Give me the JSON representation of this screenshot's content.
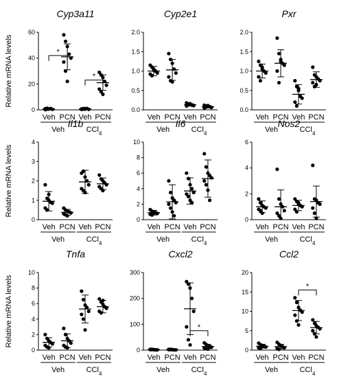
{
  "y_axis_label": "Relative mRNA levels",
  "chart_data": [
    {
      "type": "scatter",
      "title": "Cyp3a11",
      "categories": [
        "Veh",
        "PCN",
        "Veh",
        "PCN"
      ],
      "groups": [
        {
          "label": "Veh",
          "sub": ""
        },
        {
          "label": "CCl",
          "sub": "4"
        }
      ],
      "ylim": [
        0,
        60
      ],
      "yticks": [
        0,
        20,
        40,
        60
      ],
      "series": [
        {
          "name": "Veh",
          "mean": 0.7,
          "sd": 0.6,
          "points": [
            0.2,
            0.5,
            0.8,
            1.0,
            0.4,
            0.9,
            1.2,
            0.6
          ]
        },
        {
          "name": "PCN",
          "mean": 41,
          "sd": 10,
          "points": [
            58,
            53,
            49,
            43,
            40,
            37,
            30,
            22
          ]
        },
        {
          "name": "Veh",
          "mean": 0.7,
          "sd": 0.6,
          "points": [
            0.3,
            0.6,
            0.9,
            1.1,
            0.4,
            0.7,
            1.0,
            0.5
          ]
        },
        {
          "name": "PCN",
          "mean": 21,
          "sd": 6,
          "points": [
            29,
            27,
            25,
            22,
            19,
            16,
            14,
            12
          ]
        }
      ],
      "annotations": [
        {
          "text": "*",
          "from": 0,
          "to": 1,
          "y": 42
        },
        {
          "text": "*",
          "from": 2,
          "to": 3,
          "y": 23
        }
      ]
    },
    {
      "type": "scatter",
      "title": "Cyp2e1",
      "categories": [
        "Veh",
        "PCN",
        "Veh",
        "PCN"
      ],
      "groups": [
        {
          "label": "Veh",
          "sub": ""
        },
        {
          "label": "CCl",
          "sub": "4"
        }
      ],
      "ylim": [
        0,
        2.0
      ],
      "yticks": [
        0.0,
        0.5,
        1.0,
        1.5,
        2.0
      ],
      "series": [
        {
          "name": "Veh",
          "mean": 1.0,
          "sd": 0.12,
          "points": [
            1.15,
            1.1,
            1.05,
            1.0,
            0.95,
            0.92,
            0.88,
            1.02
          ]
        },
        {
          "name": "PCN",
          "mean": 1.03,
          "sd": 0.27,
          "points": [
            1.45,
            1.3,
            1.2,
            1.05,
            0.95,
            0.85,
            0.75,
            0.72
          ]
        },
        {
          "name": "Veh",
          "mean": 0.13,
          "sd": 0.03,
          "points": [
            0.18,
            0.15,
            0.14,
            0.12,
            0.11,
            0.1,
            0.13,
            0.16
          ]
        },
        {
          "name": "PCN",
          "mean": 0.08,
          "sd": 0.03,
          "points": [
            0.12,
            0.1,
            0.09,
            0.08,
            0.06,
            0.05,
            0.07,
            0.11
          ]
        }
      ],
      "annotations": []
    },
    {
      "type": "scatter",
      "title": "Pxr",
      "categories": [
        "Veh",
        "PCN",
        "Veh",
        "PCN"
      ],
      "groups": [
        {
          "label": "Veh",
          "sub": ""
        },
        {
          "label": "CCl",
          "sub": "4"
        }
      ],
      "ylim": [
        0,
        2.0
      ],
      "yticks": [
        0.0,
        0.5,
        1.0,
        1.5,
        2.0
      ],
      "series": [
        {
          "name": "Veh",
          "mean": 1.0,
          "sd": 0.18,
          "points": [
            1.25,
            1.15,
            1.05,
            1.0,
            0.95,
            0.85,
            0.75,
            1.1
          ]
        },
        {
          "name": "PCN",
          "mean": 1.2,
          "sd": 0.35,
          "points": [
            1.85,
            1.45,
            1.3,
            1.2,
            1.15,
            1.0,
            0.7,
            1.25
          ]
        },
        {
          "name": "Veh",
          "mean": 0.4,
          "sd": 0.25,
          "points": [
            0.75,
            0.6,
            0.5,
            0.35,
            0.3,
            0.2,
            0.1,
            0.55
          ]
        },
        {
          "name": "PCN",
          "mean": 0.78,
          "sd": 0.2,
          "points": [
            1.1,
            0.9,
            0.85,
            0.8,
            0.75,
            0.7,
            0.6,
            0.65
          ]
        }
      ],
      "annotations": []
    },
    {
      "type": "scatter",
      "title": "Il1b",
      "categories": [
        "Veh",
        "PCN",
        "Veh",
        "PCN"
      ],
      "groups": [
        {
          "label": "Veh",
          "sub": ""
        },
        {
          "label": "CCl",
          "sub": "4"
        }
      ],
      "ylim": [
        0,
        4
      ],
      "yticks": [
        0,
        1,
        2,
        3,
        4
      ],
      "series": [
        {
          "name": "Veh",
          "mean": 0.95,
          "sd": 0.5,
          "points": [
            1.8,
            1.1,
            1.0,
            0.9,
            0.85,
            0.6,
            0.5,
            1.3
          ]
        },
        {
          "name": "PCN",
          "mean": 0.38,
          "sd": 0.15,
          "points": [
            0.6,
            0.5,
            0.45,
            0.4,
            0.35,
            0.3,
            0.25,
            0.2
          ]
        },
        {
          "name": "Veh",
          "mean": 1.95,
          "sd": 0.6,
          "points": [
            2.4,
            2.5,
            2.2,
            2.0,
            1.8,
            1.6,
            1.5,
            1.4
          ]
        },
        {
          "name": "PCN",
          "mean": 1.85,
          "sd": 0.3,
          "points": [
            2.3,
            2.1,
            2.0,
            1.9,
            1.8,
            1.7,
            1.6,
            1.5
          ]
        }
      ],
      "annotations": []
    },
    {
      "type": "scatter",
      "title": "Il6",
      "categories": [
        "Veh",
        "PCN",
        "Veh",
        "PCN"
      ],
      "groups": [
        {
          "label": "Veh",
          "sub": ""
        },
        {
          "label": "CCl",
          "sub": "4"
        }
      ],
      "ylim": [
        0,
        10
      ],
      "yticks": [
        0,
        2,
        4,
        6,
        8,
        10
      ],
      "series": [
        {
          "name": "Veh",
          "mean": 0.9,
          "sd": 0.3,
          "points": [
            1.3,
            1.1,
            1.0,
            0.9,
            0.8,
            0.7,
            0.6,
            0.85
          ]
        },
        {
          "name": "PCN",
          "mean": 2.3,
          "sd": 2.2,
          "points": [
            5.0,
            3.5,
            2.8,
            2.5,
            2.2,
            2.0,
            1.5,
            1.0,
            0.5
          ]
        },
        {
          "name": "Veh",
          "mean": 3.7,
          "sd": 1.7,
          "points": [
            6.0,
            5.3,
            4.5,
            4.0,
            3.5,
            3.3,
            3.0,
            2.5,
            2.2
          ]
        },
        {
          "name": "PCN",
          "mean": 5.3,
          "sd": 2.4,
          "points": [
            8.5,
            6.8,
            6.0,
            5.7,
            5.4,
            5.0,
            4.5,
            3.8,
            2.5
          ]
        }
      ],
      "annotations": []
    },
    {
      "type": "scatter",
      "title": "Nos2",
      "categories": [
        "Veh",
        "PCN",
        "Veh",
        "PCN"
      ],
      "groups": [
        {
          "label": "Veh",
          "sub": ""
        },
        {
          "label": "CCl",
          "sub": "4"
        }
      ],
      "ylim": [
        0,
        6
      ],
      "yticks": [
        0,
        2,
        4,
        6
      ],
      "series": [
        {
          "name": "Veh",
          "mean": 1.0,
          "sd": 0.45,
          "points": [
            1.6,
            1.3,
            1.1,
            1.0,
            0.9,
            0.8,
            0.7,
            0.5
          ]
        },
        {
          "name": "PCN",
          "mean": 1.0,
          "sd": 1.3,
          "points": [
            3.9,
            1.6,
            1.2,
            1.0,
            0.7,
            0.5,
            0.3,
            0.1
          ]
        },
        {
          "name": "Veh",
          "mean": 1.1,
          "sd": 0.4,
          "points": [
            1.6,
            1.4,
            1.2,
            1.1,
            1.0,
            0.8,
            0.6,
            1.3
          ]
        },
        {
          "name": "PCN",
          "mean": 1.4,
          "sd": 1.2,
          "points": [
            4.2,
            1.6,
            1.5,
            1.3,
            1.2,
            0.9,
            0.5,
            0.1
          ]
        }
      ],
      "annotations": []
    },
    {
      "type": "scatter",
      "title": "Tnfa",
      "categories": [
        "Veh",
        "PCN",
        "Veh",
        "PCN"
      ],
      "groups": [
        {
          "label": "Veh",
          "sub": ""
        },
        {
          "label": "CCl",
          "sub": "4"
        }
      ],
      "ylim": [
        0,
        10
      ],
      "yticks": [
        0,
        2,
        4,
        6,
        8,
        10
      ],
      "series": [
        {
          "name": "Veh",
          "mean": 1.0,
          "sd": 0.6,
          "points": [
            2.0,
            1.5,
            1.2,
            1.0,
            0.8,
            0.6,
            0.4,
            0.3
          ]
        },
        {
          "name": "PCN",
          "mean": 1.2,
          "sd": 0.9,
          "points": [
            2.8,
            2.0,
            1.5,
            1.2,
            0.9,
            0.6,
            0.4,
            0.3
          ]
        },
        {
          "name": "Veh",
          "mean": 5.3,
          "sd": 1.8,
          "points": [
            7.6,
            6.5,
            5.8,
            5.5,
            5.0,
            4.6,
            4.0,
            2.6
          ]
        },
        {
          "name": "PCN",
          "mean": 5.6,
          "sd": 0.8,
          "points": [
            6.6,
            6.2,
            5.9,
            5.6,
            5.4,
            5.0,
            4.8,
            6.4
          ]
        }
      ],
      "annotations": []
    },
    {
      "type": "scatter",
      "title": "Cxcl2",
      "categories": [
        "Veh",
        "PCN",
        "Veh",
        "PCN"
      ],
      "groups": [
        {
          "label": "Veh",
          "sub": ""
        },
        {
          "label": "CCl",
          "sub": "4"
        }
      ],
      "ylim": [
        0,
        300
      ],
      "yticks": [
        0,
        100,
        200,
        300
      ],
      "series": [
        {
          "name": "Veh",
          "mean": 2,
          "sd": 1,
          "points": [
            3,
            2,
            2,
            1,
            1,
            2,
            3,
            2
          ]
        },
        {
          "name": "PCN",
          "mean": 2,
          "sd": 1,
          "points": [
            3,
            2,
            2,
            1,
            1,
            2,
            3,
            2
          ]
        },
        {
          "name": "Veh",
          "mean": 160,
          "sd": 100,
          "points": [
            265,
            255,
            240,
            200,
            150,
            90,
            40,
            20
          ]
        },
        {
          "name": "PCN",
          "mean": 14,
          "sd": 8,
          "points": [
            28,
            22,
            18,
            14,
            11,
            8,
            6,
            4
          ]
        }
      ],
      "annotations": [
        {
          "text": "*",
          "from": 2,
          "to": 3,
          "y": 75
        }
      ]
    },
    {
      "type": "scatter",
      "title": "Ccl2",
      "categories": [
        "Veh",
        "PCN",
        "Veh",
        "PCN"
      ],
      "groups": [
        {
          "label": "Veh",
          "sub": ""
        },
        {
          "label": "CCl",
          "sub": "4"
        }
      ],
      "ylim": [
        0,
        20
      ],
      "yticks": [
        0,
        5,
        10,
        15,
        20
      ],
      "series": [
        {
          "name": "Veh",
          "mean": 1.0,
          "sd": 0.5,
          "points": [
            1.8,
            1.4,
            1.2,
            1.0,
            0.8,
            0.6,
            0.4,
            0.9
          ]
        },
        {
          "name": "PCN",
          "mean": 0.9,
          "sd": 0.6,
          "points": [
            2.0,
            1.5,
            1.1,
            0.9,
            0.6,
            0.4,
            0.2,
            1.2
          ]
        },
        {
          "name": "Veh",
          "mean": 10.2,
          "sd": 2.6,
          "points": [
            13.5,
            12.3,
            11.0,
            10.3,
            9.8,
            9.0,
            7.5,
            6.5
          ]
        },
        {
          "name": "PCN",
          "mean": 5.8,
          "sd": 1.6,
          "points": [
            7.8,
            6.9,
            6.3,
            5.9,
            5.5,
            5.0,
            4.2,
            3.4
          ]
        }
      ],
      "annotations": [
        {
          "text": "*",
          "from": 2,
          "to": 3,
          "y": 15.5
        }
      ]
    }
  ]
}
